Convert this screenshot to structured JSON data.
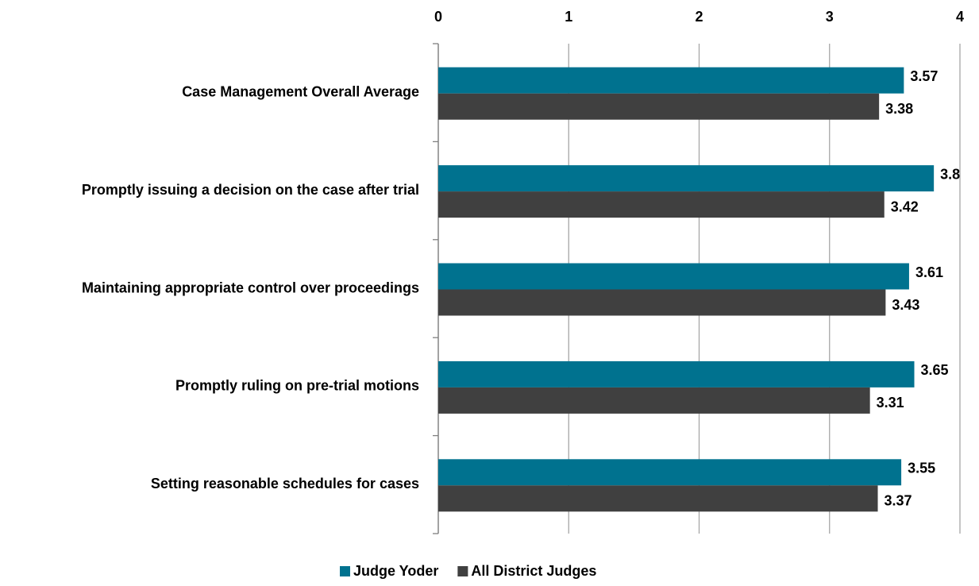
{
  "chart_data": {
    "type": "hbar",
    "categories": [
      "Case Management Overall Average",
      "Promptly issuing a decision on the case after trial",
      "Maintaining appropriate control over proceedings",
      "Promptly ruling on pre-trial motions",
      "Setting reasonable schedules for cases"
    ],
    "series": [
      {
        "name": "Judge Yoder",
        "color": "#00728f",
        "values": [
          3.57,
          3.8,
          3.61,
          3.65,
          3.55
        ]
      },
      {
        "name": "All District Judges",
        "color": "#404040",
        "values": [
          3.38,
          3.42,
          3.43,
          3.31,
          3.37
        ]
      }
    ],
    "xlim": [
      0,
      4
    ],
    "xticks": [
      0,
      1,
      2,
      3,
      4
    ],
    "grid": true,
    "legend": "bottom"
  }
}
